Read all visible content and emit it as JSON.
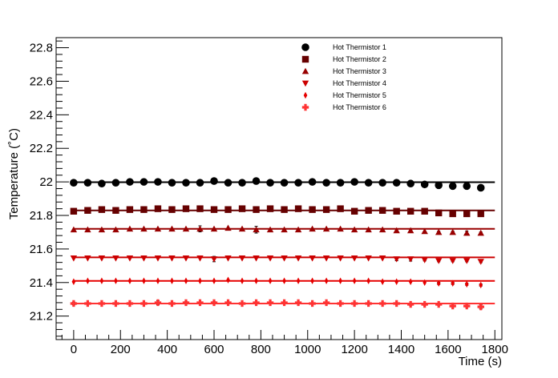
{
  "chart_data": {
    "type": "scatter",
    "xlabel": "Time (s)",
    "ylabel": "Temperature (˚C)",
    "xlim": [
      -75,
      1830
    ],
    "ylim": [
      21.06,
      22.86
    ],
    "xticks": [
      0,
      200,
      400,
      600,
      800,
      1000,
      1200,
      1400,
      1600,
      1800
    ],
    "xtick_labels": [
      "0",
      "200",
      "400",
      "600",
      "800",
      "1000",
      "1200",
      "1400",
      "1600",
      "1800"
    ],
    "yticks": [
      21.2,
      21.4,
      21.6,
      21.8,
      22.0,
      22.2,
      22.4,
      22.6,
      22.8
    ],
    "ytick_labels": [
      "21.2",
      "21.4",
      "21.6",
      "21.8",
      "22",
      "22.2",
      "22.4",
      "22.6",
      "22.8"
    ],
    "fit_x_range": [
      0,
      1800
    ],
    "legend_position": "top-right",
    "x": [
      0,
      60,
      120,
      180,
      240,
      300,
      360,
      420,
      480,
      540,
      600,
      660,
      720,
      780,
      840,
      900,
      960,
      1020,
      1080,
      1140,
      1200,
      1260,
      1320,
      1380,
      1440,
      1500,
      1560,
      1620,
      1680,
      1740
    ],
    "series": [
      {
        "name": "Hot Thermistor 1",
        "marker": "circle",
        "color": "#000000",
        "fit": 21.998,
        "values": [
          21.995,
          21.995,
          21.99,
          21.995,
          22.0,
          22.0,
          22.0,
          21.995,
          21.995,
          21.995,
          22.005,
          21.995,
          21.995,
          22.005,
          21.995,
          21.995,
          21.995,
          22.0,
          21.995,
          21.995,
          22.0,
          21.995,
          21.995,
          21.995,
          21.99,
          21.985,
          21.98,
          21.975,
          21.975,
          21.965
        ],
        "err": [
          0.004,
          0.004,
          0.004,
          0.004,
          0.004,
          0.004,
          0.004,
          0.004,
          0.004,
          0.004,
          0.004,
          0.004,
          0.004,
          0.004,
          0.004,
          0.004,
          0.004,
          0.004,
          0.004,
          0.004,
          0.004,
          0.004,
          0.004,
          0.004,
          0.004,
          0.004,
          0.006,
          0.006,
          0.006,
          0.008
        ]
      },
      {
        "name": "Hot Thermistor 2",
        "marker": "square",
        "color": "#660000",
        "fit": 21.83,
        "values": [
          21.825,
          21.83,
          21.835,
          21.83,
          21.835,
          21.835,
          21.84,
          21.835,
          21.84,
          21.84,
          21.835,
          21.835,
          21.84,
          21.835,
          21.84,
          21.835,
          21.84,
          21.835,
          21.835,
          21.84,
          21.825,
          21.83,
          21.83,
          21.825,
          21.825,
          21.825,
          21.815,
          21.81,
          21.81,
          21.81
        ],
        "err": [
          0.004,
          0.004,
          0.004,
          0.004,
          0.004,
          0.004,
          0.004,
          0.004,
          0.004,
          0.004,
          0.004,
          0.004,
          0.004,
          0.004,
          0.004,
          0.004,
          0.004,
          0.004,
          0.004,
          0.004,
          0.01,
          0.004,
          0.004,
          0.004,
          0.004,
          0.004,
          0.006,
          0.006,
          0.006,
          0.006
        ]
      },
      {
        "name": "Hot Thermistor 3",
        "marker": "triangle-up",
        "color": "#990000",
        "fit": 21.72,
        "values": [
          21.715,
          21.715,
          21.715,
          21.715,
          21.72,
          21.72,
          21.72,
          21.72,
          21.72,
          21.72,
          21.72,
          21.725,
          21.72,
          21.715,
          21.715,
          21.715,
          21.715,
          21.72,
          21.72,
          21.72,
          21.715,
          21.715,
          21.715,
          21.71,
          21.71,
          21.705,
          21.7,
          21.7,
          21.695,
          21.695
        ],
        "err": [
          0.004,
          0.004,
          0.004,
          0.004,
          0.004,
          0.004,
          0.004,
          0.004,
          0.004,
          0.018,
          0.004,
          0.004,
          0.004,
          0.02,
          0.004,
          0.004,
          0.004,
          0.004,
          0.004,
          0.004,
          0.004,
          0.004,
          0.004,
          0.004,
          0.004,
          0.004,
          0.006,
          0.006,
          0.012,
          0.006
        ]
      },
      {
        "name": "Hot Thermistor 4",
        "marker": "triangle-down",
        "color": "#cc0000",
        "fit": 21.55,
        "values": [
          21.545,
          21.545,
          21.545,
          21.545,
          21.545,
          21.545,
          21.545,
          21.545,
          21.545,
          21.545,
          21.54,
          21.545,
          21.545,
          21.545,
          21.545,
          21.545,
          21.545,
          21.545,
          21.545,
          21.545,
          21.545,
          21.545,
          21.545,
          21.54,
          21.54,
          21.535,
          21.53,
          21.53,
          21.53,
          21.525
        ],
        "err": [
          0.004,
          0.004,
          0.004,
          0.004,
          0.004,
          0.004,
          0.004,
          0.004,
          0.004,
          0.004,
          0.016,
          0.004,
          0.004,
          0.004,
          0.004,
          0.004,
          0.004,
          0.004,
          0.004,
          0.004,
          0.004,
          0.004,
          0.004,
          0.01,
          0.012,
          0.006,
          0.006,
          0.006,
          0.006,
          0.006
        ]
      },
      {
        "name": "Hot Thermistor 5",
        "marker": "diamond",
        "color": "#e60000",
        "fit": 21.41,
        "values": [
          21.405,
          21.41,
          21.41,
          21.41,
          21.41,
          21.41,
          21.41,
          21.41,
          21.41,
          21.41,
          21.41,
          21.415,
          21.41,
          21.41,
          21.41,
          21.41,
          21.41,
          21.41,
          21.41,
          21.41,
          21.41,
          21.41,
          21.405,
          21.405,
          21.405,
          21.4,
          21.395,
          21.395,
          21.39,
          21.385
        ],
        "err": [
          0.004,
          0.004,
          0.004,
          0.004,
          0.004,
          0.004,
          0.004,
          0.004,
          0.004,
          0.004,
          0.004,
          0.004,
          0.004,
          0.004,
          0.004,
          0.004,
          0.004,
          0.004,
          0.004,
          0.004,
          0.004,
          0.004,
          0.004,
          0.004,
          0.004,
          0.004,
          0.006,
          0.006,
          0.006,
          0.006
        ]
      },
      {
        "name": "Hot Thermistor 6",
        "marker": "cross",
        "color": "#ff3333",
        "fit": 21.275,
        "values": [
          21.275,
          21.275,
          21.275,
          21.275,
          21.275,
          21.275,
          21.28,
          21.275,
          21.28,
          21.28,
          21.28,
          21.28,
          21.275,
          21.28,
          21.28,
          21.28,
          21.28,
          21.275,
          21.28,
          21.275,
          21.275,
          21.275,
          21.275,
          21.275,
          21.27,
          21.27,
          21.27,
          21.26,
          21.26,
          21.255
        ],
        "err": [
          0.008,
          0.004,
          0.004,
          0.004,
          0.004,
          0.004,
          0.012,
          0.004,
          0.006,
          0.004,
          0.006,
          0.004,
          0.004,
          0.004,
          0.004,
          0.004,
          0.004,
          0.004,
          0.004,
          0.004,
          0.004,
          0.004,
          0.004,
          0.004,
          0.006,
          0.006,
          0.006,
          0.006,
          0.006,
          0.012
        ]
      }
    ]
  }
}
